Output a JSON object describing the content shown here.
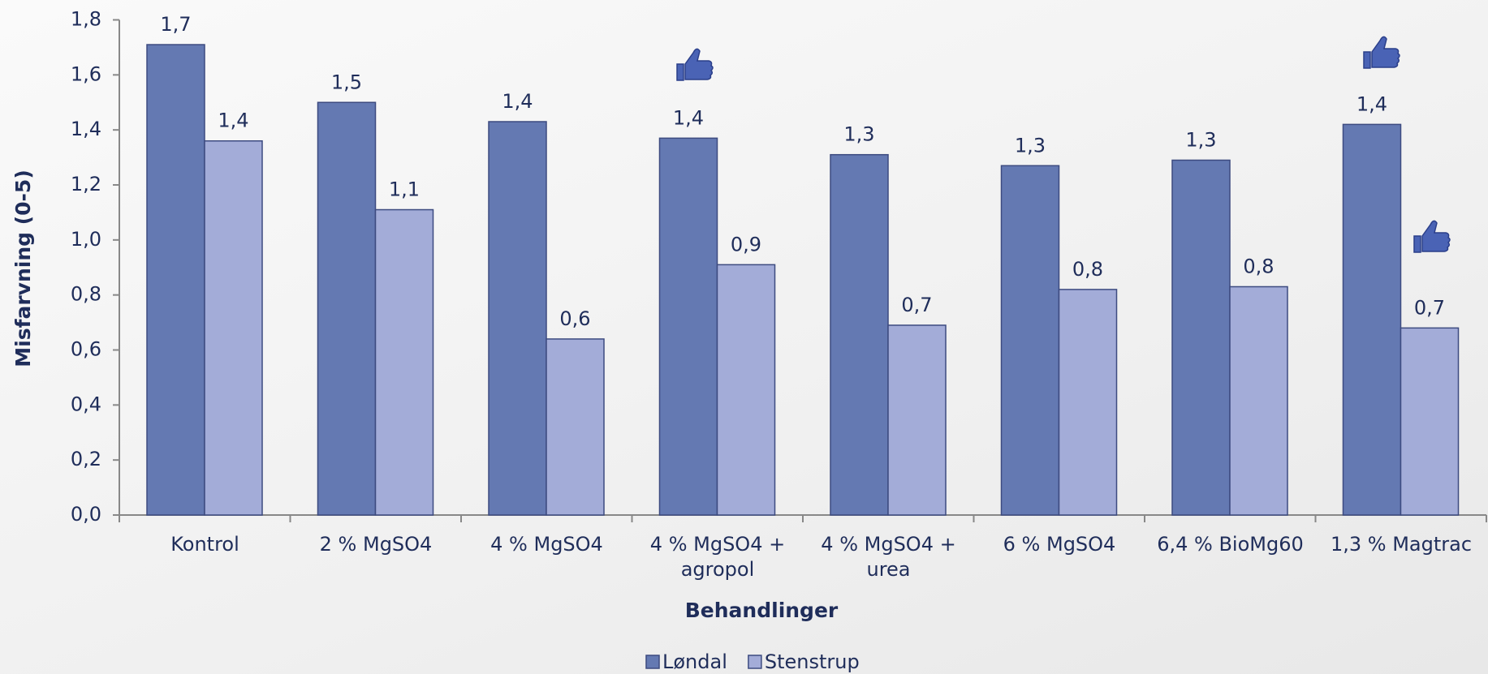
{
  "chart_data": {
    "type": "bar",
    "y_label": "Misfarvning (0-5)",
    "x_label": "Behandlinger",
    "categories": [
      "Kontrol",
      "2 % MgSO4",
      "4 % MgSO4",
      "4 % MgSO4 + agropol",
      "4 % MgSO4 + urea",
      "6 % MgSO4",
      "6,4 % BioMg60",
      "1,3 % Magtrac"
    ],
    "series": [
      {
        "name": "Løndal",
        "color": "#6479b2",
        "values": [
          1.71,
          1.5,
          1.43,
          1.37,
          1.31,
          1.27,
          1.29,
          1.42
        ],
        "value_labels": [
          "1,7",
          "1,5",
          "1,4",
          "1,4",
          "1,3",
          "1,3",
          "1,3",
          "1,4"
        ]
      },
      {
        "name": "Stenstrup",
        "color": "#a3acd8",
        "values": [
          1.36,
          1.11,
          0.64,
          0.91,
          0.69,
          0.82,
          0.83,
          0.68
        ],
        "value_labels": [
          "1,4",
          "1,1",
          "0,6",
          "0,9",
          "0,7",
          "0,8",
          "0,8",
          "0,7"
        ]
      }
    ],
    "ylim": [
      0,
      1.8
    ],
    "yticks": [
      {
        "value": 0,
        "label": "0,0"
      },
      {
        "value": 0.2,
        "label": "0,2"
      },
      {
        "value": 0.4,
        "label": "0,4"
      },
      {
        "value": 0.6,
        "label": "0,6"
      },
      {
        "value": 0.8,
        "label": "0,8"
      },
      {
        "value": 1.0,
        "label": "1,0"
      },
      {
        "value": 1.2,
        "label": "1,2"
      },
      {
        "value": 1.4,
        "label": "1,4"
      },
      {
        "value": 1.6,
        "label": "1,6"
      },
      {
        "value": 1.8,
        "label": "1,8"
      }
    ],
    "legend": "bottom"
  }
}
